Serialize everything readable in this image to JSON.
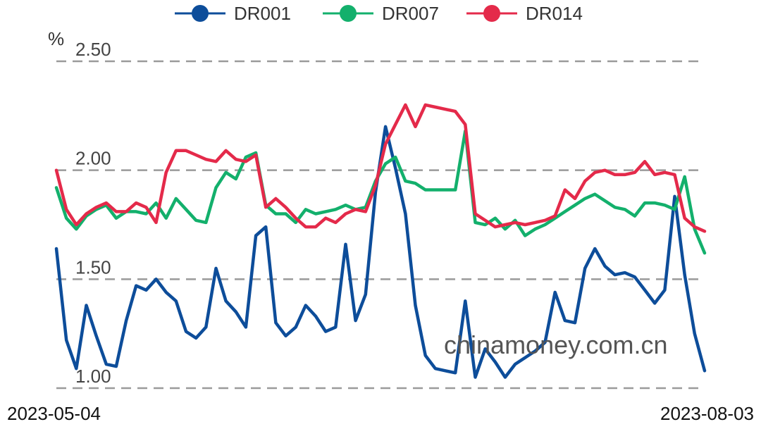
{
  "chart_data": {
    "type": "line",
    "unit": "%",
    "ylim": [
      1.0,
      2.5
    ],
    "yticks": [
      "1.00",
      "1.50",
      "2.00",
      "2.50"
    ],
    "grid": true,
    "legend_position": "top",
    "x_first": "2023-05-04",
    "x_last": "2023-08-03",
    "watermark": "chinamoney.com.cn",
    "series": [
      {
        "name": "DR001",
        "color": "#0d4d9a",
        "values": [
          1.64,
          1.22,
          1.09,
          1.38,
          1.24,
          1.11,
          1.1,
          1.31,
          1.47,
          1.45,
          1.5,
          1.44,
          1.4,
          1.26,
          1.23,
          1.28,
          1.55,
          1.4,
          1.35,
          1.28,
          1.7,
          1.74,
          1.3,
          1.24,
          1.28,
          1.38,
          1.33,
          1.26,
          1.28,
          1.66,
          1.31,
          1.43,
          1.9,
          2.2,
          2.01,
          1.8,
          1.38,
          1.15,
          1.09,
          1.08,
          1.07,
          1.4,
          1.05,
          1.18,
          1.12,
          1.05,
          1.11,
          1.14,
          1.17,
          1.21,
          1.44,
          1.31,
          1.3,
          1.55,
          1.64,
          1.56,
          1.52,
          1.53,
          1.51,
          1.45,
          1.39,
          1.45,
          1.88,
          1.52,
          1.25,
          1.08
        ]
      },
      {
        "name": "DR007",
        "color": "#13b06c",
        "values": [
          1.92,
          1.78,
          1.73,
          1.79,
          1.82,
          1.84,
          1.78,
          1.81,
          1.81,
          1.8,
          1.85,
          1.78,
          1.87,
          1.82,
          1.77,
          1.76,
          1.92,
          1.99,
          1.96,
          2.06,
          2.08,
          1.84,
          1.8,
          1.8,
          1.76,
          1.82,
          1.8,
          1.81,
          1.82,
          1.84,
          1.82,
          1.83,
          1.95,
          2.03,
          2.06,
          1.95,
          1.94,
          1.91,
          1.91,
          1.91,
          1.91,
          2.18,
          1.76,
          1.75,
          1.78,
          1.73,
          1.77,
          1.7,
          1.73,
          1.75,
          1.78,
          1.81,
          1.84,
          1.87,
          1.89,
          1.86,
          1.83,
          1.82,
          1.79,
          1.85,
          1.85,
          1.84,
          1.82,
          1.97,
          1.73,
          1.62
        ]
      },
      {
        "name": "DR014",
        "color": "#e42a4a",
        "values": [
          2.0,
          1.82,
          1.75,
          1.8,
          1.83,
          1.85,
          1.81,
          1.81,
          1.85,
          1.83,
          1.76,
          1.99,
          2.09,
          2.09,
          2.07,
          2.05,
          2.04,
          2.09,
          2.05,
          2.04,
          2.07,
          1.83,
          1.87,
          1.83,
          1.78,
          1.74,
          1.74,
          1.78,
          1.76,
          1.8,
          1.82,
          1.81,
          1.93,
          2.12,
          2.21,
          2.3,
          2.2,
          2.3,
          2.29,
          2.28,
          2.27,
          2.21,
          1.8,
          1.77,
          1.74,
          1.75,
          1.76,
          1.75,
          1.76,
          1.77,
          1.79,
          1.91,
          1.87,
          1.95,
          1.99,
          2.0,
          1.98,
          1.98,
          1.99,
          2.04,
          1.98,
          1.99,
          1.98,
          1.78,
          1.74,
          1.72
        ]
      }
    ]
  }
}
